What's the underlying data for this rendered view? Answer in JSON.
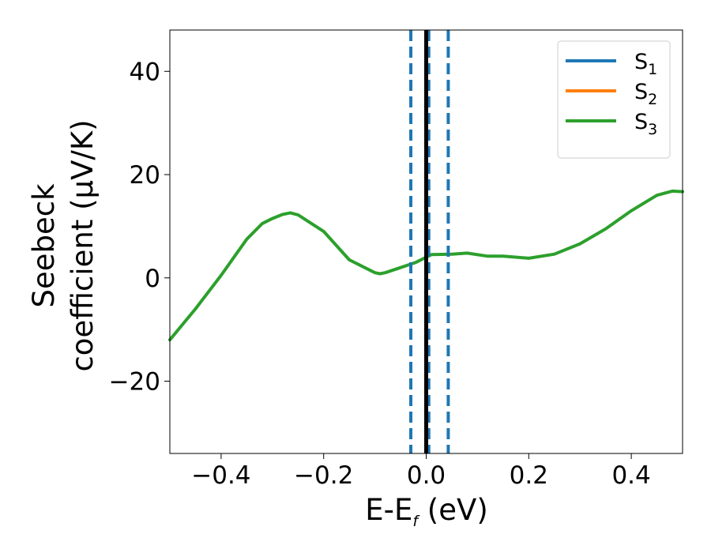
{
  "chart_data": {
    "type": "line",
    "xlabel": {
      "base": "E-E",
      "sub": "f",
      "suffix": " (eV)"
    },
    "ylabel": {
      "line1": "Seebeck",
      "line2": "coefficient  (μV/K)"
    },
    "xlim": [
      -0.5,
      0.5
    ],
    "ylim": [
      -34,
      48
    ],
    "xticks": [
      -0.4,
      -0.2,
      0.0,
      0.2,
      0.4
    ],
    "xtick_labels": [
      "−0.4",
      "−0.2",
      "0.0",
      "0.2",
      "0.4"
    ],
    "yticks": [
      -20,
      0,
      20,
      40
    ],
    "ytick_labels": [
      "−20",
      "0",
      "20",
      "40"
    ],
    "grid": false,
    "legend_position": "top-right",
    "series": [
      {
        "name": "S",
        "sub": "1",
        "color": "#1f77b4",
        "visible": false,
        "x": [
          -0.5,
          -0.45,
          -0.4,
          -0.35,
          -0.32,
          -0.3,
          -0.28,
          -0.265,
          -0.25,
          -0.2,
          -0.15,
          -0.12,
          -0.1,
          -0.09,
          -0.08,
          -0.05,
          -0.02,
          0.0,
          0.01,
          0.05,
          0.08,
          0.12,
          0.15,
          0.2,
          0.25,
          0.3,
          0.35,
          0.4,
          0.45,
          0.48,
          0.5
        ],
        "y": [
          -12,
          -6,
          0.5,
          7.5,
          10.5,
          11.5,
          12.3,
          12.6,
          12.2,
          9,
          3.5,
          2,
          1,
          0.8,
          1,
          2,
          3,
          4,
          4.5,
          4.6,
          4.8,
          4.2,
          4.2,
          3.8,
          4.6,
          6.6,
          9.5,
          13,
          16,
          16.8,
          16.7
        ]
      },
      {
        "name": "S",
        "sub": "2",
        "color": "#ff7f0e",
        "visible": false,
        "x": [
          -0.5,
          -0.45,
          -0.4,
          -0.35,
          -0.32,
          -0.3,
          -0.28,
          -0.265,
          -0.25,
          -0.2,
          -0.15,
          -0.12,
          -0.1,
          -0.09,
          -0.08,
          -0.05,
          -0.02,
          0.0,
          0.01,
          0.05,
          0.08,
          0.12,
          0.15,
          0.2,
          0.25,
          0.3,
          0.35,
          0.4,
          0.45,
          0.48,
          0.5
        ],
        "y": [
          -12,
          -6,
          0.5,
          7.5,
          10.5,
          11.5,
          12.3,
          12.6,
          12.2,
          9,
          3.5,
          2,
          1,
          0.8,
          1,
          2,
          3,
          4,
          4.5,
          4.6,
          4.8,
          4.2,
          4.2,
          3.8,
          4.6,
          6.6,
          9.5,
          13,
          16,
          16.8,
          16.7
        ]
      },
      {
        "name": "S",
        "sub": "3",
        "color": "#2ca02c",
        "visible": true,
        "x": [
          -0.5,
          -0.45,
          -0.4,
          -0.35,
          -0.32,
          -0.3,
          -0.28,
          -0.265,
          -0.25,
          -0.2,
          -0.15,
          -0.12,
          -0.1,
          -0.09,
          -0.08,
          -0.05,
          -0.02,
          0.0,
          0.01,
          0.05,
          0.08,
          0.12,
          0.15,
          0.2,
          0.25,
          0.3,
          0.35,
          0.4,
          0.45,
          0.48,
          0.5
        ],
        "y": [
          -12,
          -6,
          0.5,
          7.5,
          10.5,
          11.5,
          12.3,
          12.6,
          12.2,
          9,
          3.5,
          2,
          1,
          0.8,
          1,
          2,
          3,
          4,
          4.5,
          4.6,
          4.8,
          4.2,
          4.2,
          3.8,
          4.6,
          6.6,
          9.5,
          13,
          16,
          16.8,
          16.7
        ]
      }
    ],
    "vlines": [
      {
        "x": -0.03,
        "color": "#1f77b4",
        "style": "dashed"
      },
      {
        "x": 0.005,
        "color": "#1f77b4",
        "style": "dashed"
      },
      {
        "x": 0.043,
        "color": "#1f77b4",
        "style": "dashed"
      },
      {
        "x": 0.0,
        "color": "#000000",
        "style": "solid"
      }
    ]
  }
}
